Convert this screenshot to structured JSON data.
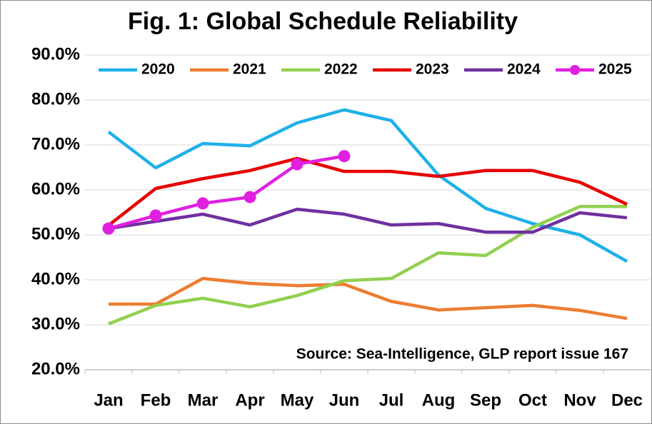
{
  "chart_data": {
    "type": "line",
    "title": "Fig. 1: Global Schedule Reliability",
    "annotation": "Source: Sea-Intelligence, GLP report issue 167",
    "categories": [
      "Jan",
      "Feb",
      "Mar",
      "Apr",
      "May",
      "Jun",
      "Jul",
      "Aug",
      "Sep",
      "Oct",
      "Nov",
      "Dec"
    ],
    "series": [
      {
        "name": "2020",
        "color": "#1fb0ea",
        "values": [
          72.9,
          64.9,
          70.3,
          69.8,
          74.9,
          77.8,
          75.4,
          63.3,
          55.9,
          52.5,
          50.0,
          44.1
        ]
      },
      {
        "name": "2021",
        "color": "#ed7d31",
        "values": [
          34.6,
          34.6,
          40.3,
          39.2,
          38.7,
          39.0,
          35.2,
          33.3,
          33.8,
          34.3,
          33.2,
          31.4
        ]
      },
      {
        "name": "2022",
        "color": "#92d050",
        "values": [
          30.2,
          34.3,
          35.9,
          34.0,
          36.5,
          39.8,
          40.3,
          46.0,
          45.4,
          51.7,
          56.3,
          56.3
        ]
      },
      {
        "name": "2023",
        "color": "#e60000",
        "values": [
          52.1,
          60.3,
          62.5,
          64.3,
          67.0,
          64.1,
          64.1,
          63.0,
          64.3,
          64.3,
          61.7,
          56.8
        ]
      },
      {
        "name": "2024",
        "color": "#7030a0",
        "values": [
          51.4,
          53.0,
          54.6,
          52.2,
          55.7,
          54.6,
          52.2,
          52.5,
          50.6,
          50.6,
          54.9,
          53.8
        ]
      },
      {
        "name": "2025",
        "color": "#e020e0",
        "markers": true,
        "values": [
          51.4,
          54.3,
          57.0,
          58.4,
          65.7,
          67.5,
          null,
          null,
          null,
          null,
          null,
          null
        ]
      }
    ],
    "ylim": [
      20,
      90
    ],
    "yticks": [
      {
        "value": 20,
        "label": "20.0%"
      },
      {
        "value": 30,
        "label": "30.0%"
      },
      {
        "value": 40,
        "label": "40.0%"
      },
      {
        "value": 50,
        "label": "50.0%"
      },
      {
        "value": 60,
        "label": "60.0%"
      },
      {
        "value": 70,
        "label": "70.0%"
      },
      {
        "value": 80,
        "label": "80.0%"
      },
      {
        "value": 90,
        "label": "90.0%"
      }
    ],
    "grid": true,
    "legend": "top"
  }
}
